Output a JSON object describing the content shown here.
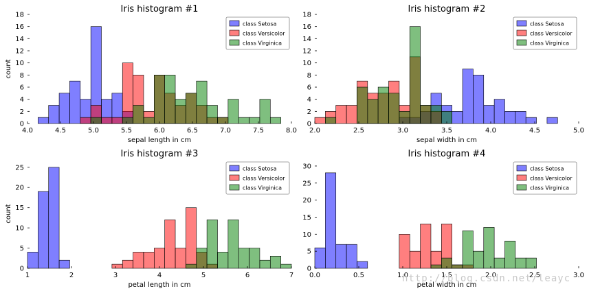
{
  "watermark": "http://blog.csdn.net/leayc",
  "colors": {
    "setosa": "#0000ff",
    "versicolor": "#ff0000",
    "virginica": "#008000"
  },
  "chart_data": [
    {
      "type": "bar",
      "title": "Iris histogram #1",
      "xlabel": "sepal length in cm",
      "ylabel": "count",
      "xlim": [
        4.0,
        8.0
      ],
      "ylim": [
        0,
        18
      ],
      "xticks": [
        "4.0",
        "4.5",
        "5.0",
        "5.5",
        "6.0",
        "6.5",
        "7.0",
        "7.5",
        "8.0"
      ],
      "yticks": [
        "0",
        "2",
        "4",
        "6",
        "8",
        "10",
        "12",
        "14",
        "16",
        "18"
      ],
      "legend_position": "top-right",
      "bin_start": 4.0,
      "bin_width": 0.16,
      "series": [
        {
          "name": "class Setosa",
          "color": "#0000ff",
          "values": [
            0,
            1,
            3,
            5,
            7,
            4,
            16,
            4,
            5,
            2,
            0,
            0,
            0,
            0,
            0,
            0,
            0,
            0,
            0,
            0,
            0,
            0,
            0,
            0,
            0
          ]
        },
        {
          "name": "class Versicolor",
          "color": "#ff0000",
          "values": [
            0,
            0,
            0,
            0,
            0,
            1,
            3,
            1,
            1,
            10,
            8,
            2,
            8,
            5,
            3,
            5,
            3,
            1,
            1,
            0,
            0,
            0,
            0,
            0,
            0
          ]
        },
        {
          "name": "class Virginica",
          "color": "#008000",
          "values": [
            0,
            0,
            0,
            0,
            0,
            0,
            1,
            0,
            0,
            1,
            3,
            1,
            8,
            8,
            4,
            5,
            7,
            3,
            1,
            4,
            1,
            1,
            4,
            1,
            0
          ]
        }
      ]
    },
    {
      "type": "bar",
      "title": "Iris histogram #2",
      "xlabel": "sepal width in cm",
      "ylabel": "",
      "xlim": [
        2.0,
        5.0
      ],
      "ylim": [
        0,
        18
      ],
      "xticks": [
        "2.0",
        "2.5",
        "3.0",
        "3.5",
        "4.0",
        "4.5",
        "5.0"
      ],
      "yticks": [
        "0",
        "2",
        "4",
        "6",
        "8",
        "10",
        "12",
        "14",
        "16",
        "18"
      ],
      "legend_position": "top-right",
      "bin_start": 2.0,
      "bin_width": 0.12,
      "series": [
        {
          "name": "class Setosa",
          "color": "#0000ff",
          "values": [
            0,
            0,
            0,
            0,
            0,
            0,
            0,
            0,
            1,
            1,
            2,
            5,
            3,
            2,
            9,
            8,
            3,
            4,
            2,
            2,
            1,
            0,
            1,
            0,
            0
          ]
        },
        {
          "name": "class Versicolor",
          "color": "#ff0000",
          "values": [
            1,
            2,
            3,
            3,
            7,
            5,
            5,
            7,
            3,
            11,
            3,
            2,
            0,
            0,
            0,
            0,
            0,
            0,
            0,
            0,
            0,
            0,
            0,
            0,
            0
          ]
        },
        {
          "name": "class Virginica",
          "color": "#008000",
          "values": [
            0,
            1,
            0,
            0,
            6,
            4,
            6,
            5,
            2,
            16,
            3,
            3,
            2,
            0,
            0,
            0,
            0,
            0,
            0,
            0,
            0,
            0,
            0,
            0,
            0
          ]
        }
      ]
    },
    {
      "type": "bar",
      "title": "Iris histogram #3",
      "xlabel": "petal length in cm",
      "ylabel": "count",
      "xlim": [
        1,
        7
      ],
      "ylim": [
        0,
        27
      ],
      "xticks": [
        "1",
        "2",
        "3",
        "4",
        "5",
        "6",
        "7"
      ],
      "yticks": [
        "0",
        "5",
        "10",
        "15",
        "20",
        "25"
      ],
      "legend_position": "top-right",
      "bin_start": 1.0,
      "bin_width": 0.24,
      "series": [
        {
          "name": "class Setosa",
          "color": "#0000ff",
          "values": [
            4,
            19,
            25,
            2,
            0,
            0,
            0,
            0,
            0,
            0,
            0,
            0,
            0,
            0,
            0,
            0,
            0,
            0,
            0,
            0,
            0,
            0,
            0,
            0,
            0
          ]
        },
        {
          "name": "class Versicolor",
          "color": "#ff0000",
          "values": [
            0,
            0,
            0,
            0,
            0,
            0,
            0,
            0,
            1,
            2,
            4,
            4,
            5,
            12,
            5,
            15,
            4,
            1,
            0,
            0,
            0,
            0,
            0,
            0,
            0
          ]
        },
        {
          "name": "class Virginica",
          "color": "#008000",
          "values": [
            0,
            0,
            0,
            0,
            0,
            0,
            0,
            0,
            0,
            0,
            0,
            0,
            0,
            0,
            0,
            1,
            5,
            12,
            4,
            12,
            5,
            5,
            2,
            3,
            1
          ]
        }
      ]
    },
    {
      "type": "bar",
      "title": "Iris histogram #4",
      "xlabel": "petal width in cm",
      "ylabel": "",
      "xlim": [
        0.0,
        3.0
      ],
      "ylim": [
        0,
        32
      ],
      "xticks": [
        "0.0",
        "0.5",
        "1.0",
        "1.5",
        "2.0",
        "2.5",
        "3.0"
      ],
      "yticks": [
        "0",
        "5",
        "10",
        "15",
        "20",
        "25",
        "30"
      ],
      "legend_position": "top-right",
      "bin_start": 0.0,
      "bin_width": 0.12,
      "series": [
        {
          "name": "class Setosa",
          "color": "#0000ff",
          "values": [
            6,
            28,
            7,
            7,
            2,
            0,
            0,
            0,
            0,
            0,
            0,
            0,
            0,
            0,
            0,
            0,
            0,
            0,
            0,
            0,
            0,
            0,
            0,
            0,
            0
          ]
        },
        {
          "name": "class Versicolor",
          "color": "#ff0000",
          "values": [
            0,
            0,
            0,
            0,
            0,
            0,
            0,
            0,
            10,
            5,
            13,
            5,
            13,
            1,
            1,
            0,
            0,
            0,
            0,
            0,
            0,
            0,
            0,
            0,
            0
          ]
        },
        {
          "name": "class Virginica",
          "color": "#008000",
          "values": [
            0,
            0,
            0,
            0,
            0,
            0,
            0,
            0,
            0,
            0,
            0,
            1,
            3,
            1,
            11,
            5,
            12,
            3,
            8,
            3,
            3,
            0,
            0,
            0,
            0
          ]
        }
      ]
    }
  ]
}
